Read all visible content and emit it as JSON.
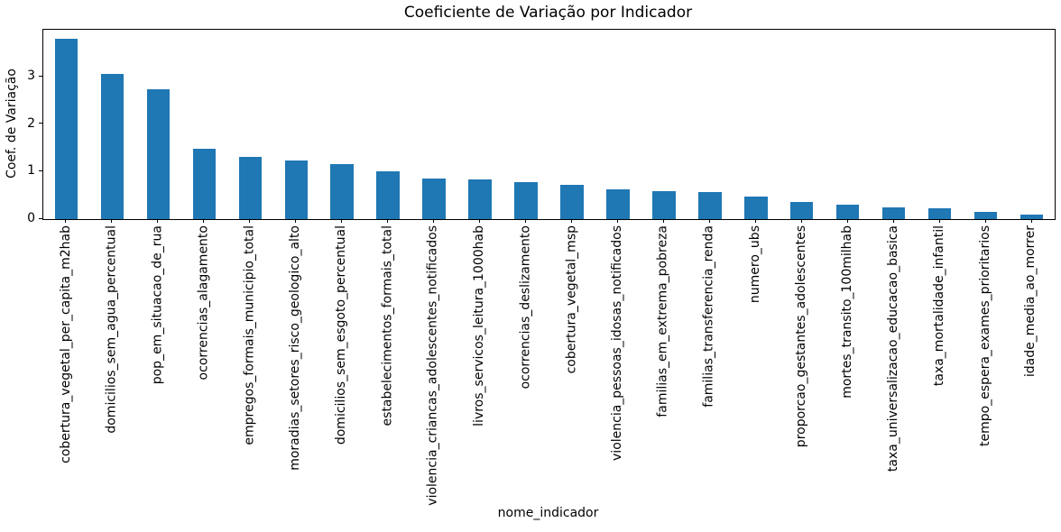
{
  "chart_data": {
    "type": "bar",
    "title": "Coeficiente de Variação por Indicador",
    "xlabel": "nome_indicador",
    "ylabel": "Coef. de Variação",
    "categories": [
      "cobertura_vegetal_per_capita_m2hab",
      "domicilios_sem_agua_percentual",
      "pop_em_situacao_de_rua",
      "ocorrencias_alagamento",
      "empregos_formais_municipio_total",
      "moradias_setores_risco_geologico_alto",
      "domicilios_sem_esgoto_percentual",
      "estabelecimentos_formais_total",
      "violencia_criancas_adolescentes_notificados",
      "livros_servicos_leitura_1000hab",
      "ocorrencias_deslizamento",
      "cobertura_vegetal_msp",
      "violencia_pessoas_idosas_notificados",
      "familias_em_extrema_pobreza",
      "familias_transferencia_renda",
      "numero_ubs",
      "proporcao_gestantes_adolescentes",
      "mortes_transito_100milhab",
      "taxa_universalizacao_educacao_basica",
      "taxa_mortalidade_infantil",
      "tempo_espera_exames_prioritarios",
      "idade_media_ao_morrer"
    ],
    "values": [
      3.8,
      3.06,
      2.74,
      1.49,
      1.32,
      1.24,
      1.16,
      1.01,
      0.86,
      0.84,
      0.78,
      0.73,
      0.63,
      0.59,
      0.57,
      0.48,
      0.37,
      0.31,
      0.24,
      0.23,
      0.15,
      0.1
    ],
    "yticks": [
      0,
      1,
      2,
      3
    ],
    "ylim": [
      0,
      3.99
    ],
    "bar_color": "#1f77b4",
    "bar_rel_width": 0.5,
    "x_tick_rotation": 90,
    "grid": false,
    "legend_position": "none"
  }
}
